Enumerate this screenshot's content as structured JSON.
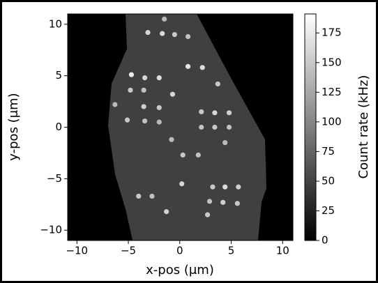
{
  "chart_data": {
    "type": "scatter",
    "xlabel": "x-pos (μm)",
    "ylabel": "y-pos (μm)",
    "xlim": [
      -10.9,
      11
    ],
    "ylim": [
      -11,
      11
    ],
    "xticks": [
      {
        "value": -10,
        "label": "−10"
      },
      {
        "value": -5,
        "label": "−5"
      },
      0,
      5,
      10
    ],
    "yticks": [
      {
        "value": -10,
        "label": "−10"
      },
      {
        "value": -5,
        "label": "−5"
      },
      0,
      5,
      10
    ],
    "x": [
      -3.1,
      -1.7,
      -0.5,
      0.8,
      -1.5,
      0.8,
      2.2,
      3.7,
      -4.7,
      -3.4,
      -2.0,
      -4.8,
      -3.5,
      -0.7,
      -6.3,
      -3.5,
      -2.0,
      -5.1,
      -3.4,
      -2.0,
      2.1,
      3.4,
      4.8,
      2.1,
      3.4,
      4.8,
      -0.8,
      0.3,
      1.8,
      4.4,
      0.2,
      3.2,
      4.4,
      5.7,
      2.9,
      4.2,
      5.6,
      -4.0,
      -2.7,
      -1.3,
      2.7
    ],
    "y": [
      9.2,
      9.1,
      9.0,
      8.8,
      10.5,
      5.9,
      5.8,
      4.2,
      5.1,
      4.8,
      4.8,
      3.6,
      3.6,
      3.2,
      2.2,
      2.0,
      1.9,
      0.7,
      0.6,
      0.5,
      1.5,
      1.4,
      1.4,
      0.0,
      0.0,
      0.0,
      -1.2,
      -2.7,
      -2.7,
      -1.5,
      -5.5,
      -5.8,
      -5.8,
      -5.8,
      -7.2,
      -7.3,
      -7.4,
      -6.7,
      -6.7,
      -8.2,
      -8.5
    ],
    "values": [
      160,
      165,
      150,
      145,
      140,
      170,
      165,
      150,
      175,
      160,
      165,
      150,
      145,
      160,
      140,
      155,
      150,
      150,
      145,
      140,
      150,
      160,
      155,
      145,
      150,
      145,
      140,
      150,
      145,
      140,
      160,
      150,
      165,
      155,
      145,
      155,
      150,
      150,
      145,
      155,
      150
    ],
    "colorbar": {
      "label": "Count rate (kHz)",
      "lim": [
        0,
        191
      ],
      "ticks": [
        0,
        25,
        50,
        75,
        100,
        125,
        150,
        175
      ]
    }
  }
}
